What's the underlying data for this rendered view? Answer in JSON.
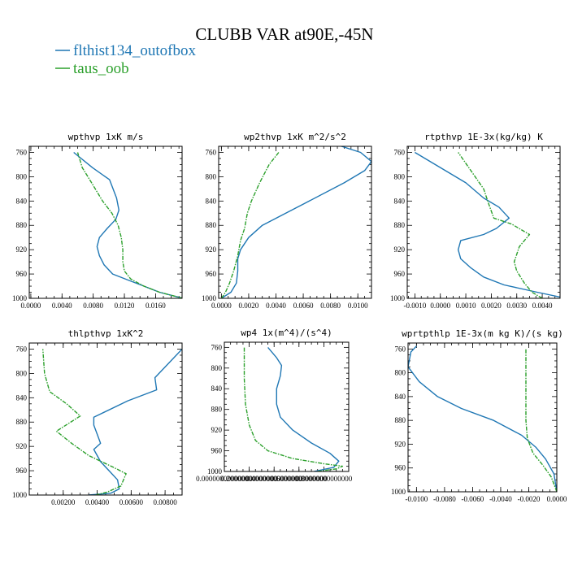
{
  "figure": {
    "title": "CLUBB VAR at90E,-45N",
    "legend": [
      {
        "label": "flthist134_outofbox",
        "color": "#1f77b4",
        "dashed": false
      },
      {
        "label": "taus_oob",
        "color": "#2ca02c",
        "dashed": true
      }
    ]
  },
  "chart_data": [
    {
      "type": "line",
      "title": "wpthvp   1xK m/s",
      "xlim": [
        -0.0002,
        0.0194
      ],
      "ylim": [
        1000,
        750
      ],
      "yticks": [
        760,
        800,
        840,
        880,
        920,
        960,
        1000
      ],
      "yticklabels": [
        "760",
        "800",
        "840",
        "880",
        "920",
        "960",
        "1000"
      ],
      "xticks": [
        0.0,
        0.004,
        0.008,
        0.012,
        0.016
      ],
      "xticklabels": [
        "0.0000",
        "0.0040",
        "0.0080",
        "0.0120",
        "0.0160"
      ],
      "series": [
        {
          "name": "flthist134_outofbox",
          "color": "#1f77b4",
          "dashed": false,
          "x": [
            0.0195,
            0.0165,
            0.0145,
            0.0125,
            0.0105,
            0.0094,
            0.0088,
            0.0085,
            0.0088,
            0.0098,
            0.0109,
            0.0113,
            0.011,
            0.0101,
            0.0079,
            0.0055
          ],
          "y": [
            1000,
            990,
            980,
            970,
            960,
            945,
            930,
            915,
            900,
            885,
            870,
            855,
            835,
            805,
            785,
            760
          ]
        },
        {
          "name": "taus_oob",
          "color": "#2ca02c",
          "dashed": true,
          "x": [
            0.0195,
            0.0165,
            0.0145,
            0.0128,
            0.012,
            0.0118,
            0.0118,
            0.0116,
            0.0112,
            0.0104,
            0.0092,
            0.0078,
            0.0066,
            0.006
          ],
          "y": [
            1000,
            990,
            980,
            968,
            955,
            940,
            920,
            900,
            880,
            860,
            840,
            810,
            785,
            760
          ]
        }
      ]
    },
    {
      "type": "line",
      "title": "wp2thvp   1xK m^2/s^2",
      "xlim": [
        -0.0002,
        0.011
      ],
      "ylim": [
        1000,
        750
      ],
      "yticks": [
        760,
        800,
        840,
        880,
        920,
        960,
        1000
      ],
      "yticklabels": [
        "760",
        "800",
        "840",
        "880",
        "920",
        "960",
        "1000"
      ],
      "xticks": [
        0.0,
        0.002,
        0.004,
        0.006,
        0.008,
        0.01
      ],
      "xticklabels": [
        "0.0000",
        "0.0020",
        "0.0040",
        "0.0060",
        "0.0080",
        "0.0100"
      ],
      "series": [
        {
          "name": "flthist134_outofbox",
          "color": "#1f77b4",
          "dashed": false,
          "x": [
            0.0,
            0.0007,
            0.0011,
            0.0012,
            0.0012,
            0.0014,
            0.002,
            0.003,
            0.006,
            0.009,
            0.0105,
            0.011,
            0.0102,
            0.0088
          ],
          "y": [
            1000,
            990,
            975,
            955,
            935,
            920,
            900,
            880,
            845,
            810,
            790,
            775,
            760,
            750
          ]
        },
        {
          "name": "taus_oob",
          "color": "#2ca02c",
          "dashed": true,
          "x": [
            0.0,
            0.0003,
            0.0006,
            0.0009,
            0.0012,
            0.0014,
            0.0017,
            0.0019,
            0.0022,
            0.0028,
            0.0035,
            0.0042
          ],
          "y": [
            1000,
            990,
            975,
            955,
            930,
            905,
            885,
            860,
            840,
            810,
            780,
            760
          ]
        }
      ]
    },
    {
      "type": "line",
      "title": "rtpthvp   1E-3x(kg/kg) K",
      "xlim": [
        -0.0013,
        0.0047
      ],
      "ylim": [
        1000,
        750
      ],
      "yticks": [
        760,
        800,
        840,
        880,
        920,
        960,
        1000
      ],
      "yticklabels": [
        "760",
        "800",
        "840",
        "880",
        "920",
        "960",
        "1000"
      ],
      "xticks": [
        -0.001,
        0.0,
        0.001,
        0.002,
        0.003,
        0.004
      ],
      "xticklabels": [
        "-0.0010",
        "0.0000",
        "0.0010",
        "0.0020",
        "0.0030",
        "0.0040"
      ],
      "series": [
        {
          "name": "flthist134_outofbox",
          "color": "#1f77b4",
          "dashed": false,
          "x": [
            0.0047,
            0.0038,
            0.0025,
            0.0017,
            0.0012,
            0.0008,
            0.0007,
            0.0008,
            0.0017,
            0.0022,
            0.0027,
            0.0023,
            0.0017,
            0.001,
            -0.001
          ],
          "y": [
            998,
            990,
            978,
            965,
            950,
            935,
            920,
            905,
            895,
            885,
            868,
            850,
            835,
            810,
            760
          ]
        },
        {
          "name": "taus_oob",
          "color": "#2ca02c",
          "dashed": true,
          "x": [
            0.004,
            0.0036,
            0.0033,
            0.003,
            0.0029,
            0.0031,
            0.0035,
            0.0028,
            0.0021,
            0.0019,
            0.0017,
            0.0012,
            0.0007
          ],
          "y": [
            1000,
            990,
            975,
            955,
            940,
            915,
            895,
            878,
            868,
            845,
            820,
            790,
            760
          ]
        }
      ]
    },
    {
      "type": "line",
      "title": "thlpthvp   1xK^2",
      "xlim": [
        0.0,
        0.009
      ],
      "ylim": [
        1000,
        750
      ],
      "yticks": [
        760,
        800,
        840,
        880,
        920,
        960,
        1000
      ],
      "yticklabels": [
        "760",
        "800",
        "840",
        "880",
        "920",
        "960",
        "1000"
      ],
      "xticks": [
        0.002,
        0.004,
        0.006,
        0.008
      ],
      "xticklabels": [
        "0.00200",
        "0.00400",
        "0.00600",
        "0.00800"
      ],
      "series": [
        {
          "name": "flthist134_outofbox",
          "color": "#1f77b4",
          "dashed": false,
          "x": [
            0.0035,
            0.0048,
            0.0053,
            0.0052,
            0.0047,
            0.0042,
            0.0038,
            0.0042,
            0.004,
            0.0038,
            0.0038,
            0.0058,
            0.0075,
            0.0074,
            0.009
          ],
          "y": [
            1000,
            997,
            990,
            975,
            960,
            945,
            925,
            915,
            900,
            885,
            872,
            845,
            827,
            807,
            760
          ]
        },
        {
          "name": "taus_oob",
          "color": "#2ca02c",
          "dashed": true,
          "x": [
            0.0039,
            0.0046,
            0.0054,
            0.0057,
            0.005,
            0.0035,
            0.0025,
            0.0016,
            0.003,
            0.0022,
            0.0012,
            0.0009,
            0.0008
          ],
          "y": [
            1000,
            995,
            985,
            965,
            955,
            935,
            915,
            895,
            870,
            850,
            830,
            800,
            760
          ]
        }
      ]
    },
    {
      "type": "line",
      "title": "wp4   1x(m^4)/(s^4)",
      "xlim": [
        0.0,
        1.0
      ],
      "ylim": [
        1000,
        750
      ],
      "yticks": [
        760,
        800,
        840,
        880,
        920,
        960,
        1000
      ],
      "yticklabels": [
        "760",
        "800",
        "840",
        "880",
        "920",
        "960",
        "1000"
      ],
      "xticks": [
        0.0,
        0.2,
        0.4,
        0.6,
        0.8
      ],
      "xticklabels": [
        "0.00000000000000",
        "0.20000000000000",
        "0.40000000000000",
        "0.60000000000000",
        "0.80000000000000"
      ],
      "series": [
        {
          "name": "flthist134_outofbox",
          "color": "#1f77b4",
          "dashed": false,
          "x": [
            0.72,
            0.88,
            0.92,
            0.85,
            0.7,
            0.55,
            0.45,
            0.42,
            0.42,
            0.45,
            0.46,
            0.42,
            0.35
          ],
          "y": [
            1000,
            992,
            980,
            965,
            945,
            920,
            895,
            870,
            840,
            815,
            795,
            780,
            760
          ]
        },
        {
          "name": "taus_oob",
          "color": "#2ca02c",
          "dashed": true,
          "x": [
            0.75,
            0.9,
            0.95,
            0.8,
            0.55,
            0.35,
            0.25,
            0.2,
            0.17,
            0.16,
            0.16
          ],
          "y": [
            1000,
            995,
            990,
            985,
            975,
            960,
            940,
            910,
            870,
            820,
            760
          ]
        }
      ]
    },
    {
      "type": "line",
      "title": "wprtpthlp   1E-3x(m kg K)/(s kg)",
      "xlim": [
        -0.0106,
        0.0
      ],
      "ylim": [
        1000,
        750
      ],
      "yticks": [
        760,
        800,
        840,
        880,
        920,
        960,
        1000
      ],
      "yticklabels": [
        "760",
        "800",
        "840",
        "880",
        "920",
        "960",
        "1000"
      ],
      "xticks": [
        -0.01,
        -0.008,
        -0.006,
        -0.004,
        -0.002,
        0.0
      ],
      "xticklabels": [
        "-0.0100",
        "-0.0080",
        "-0.0060",
        "-0.0040",
        "-0.0020",
        "0.0000"
      ],
      "series": [
        {
          "name": "flthist134_outofbox",
          "color": "#1f77b4",
          "dashed": false,
          "x": [
            0.0,
            -0.0002,
            -0.0008,
            -0.0015,
            -0.0025,
            -0.0045,
            -0.0068,
            -0.0085,
            -0.0098,
            -0.0106,
            -0.0104,
            -0.01
          ],
          "y": [
            1000,
            970,
            945,
            925,
            905,
            880,
            860,
            840,
            815,
            790,
            765,
            755
          ]
        },
        {
          "name": "taus_oob",
          "color": "#2ca02c",
          "dashed": true,
          "x": [
            0.0,
            -0.0004,
            -0.001,
            -0.0017,
            -0.0021,
            -0.0022,
            -0.0022,
            -0.0022,
            -0.0022
          ],
          "y": [
            1000,
            975,
            955,
            935,
            910,
            880,
            850,
            800,
            760
          ]
        }
      ]
    }
  ]
}
